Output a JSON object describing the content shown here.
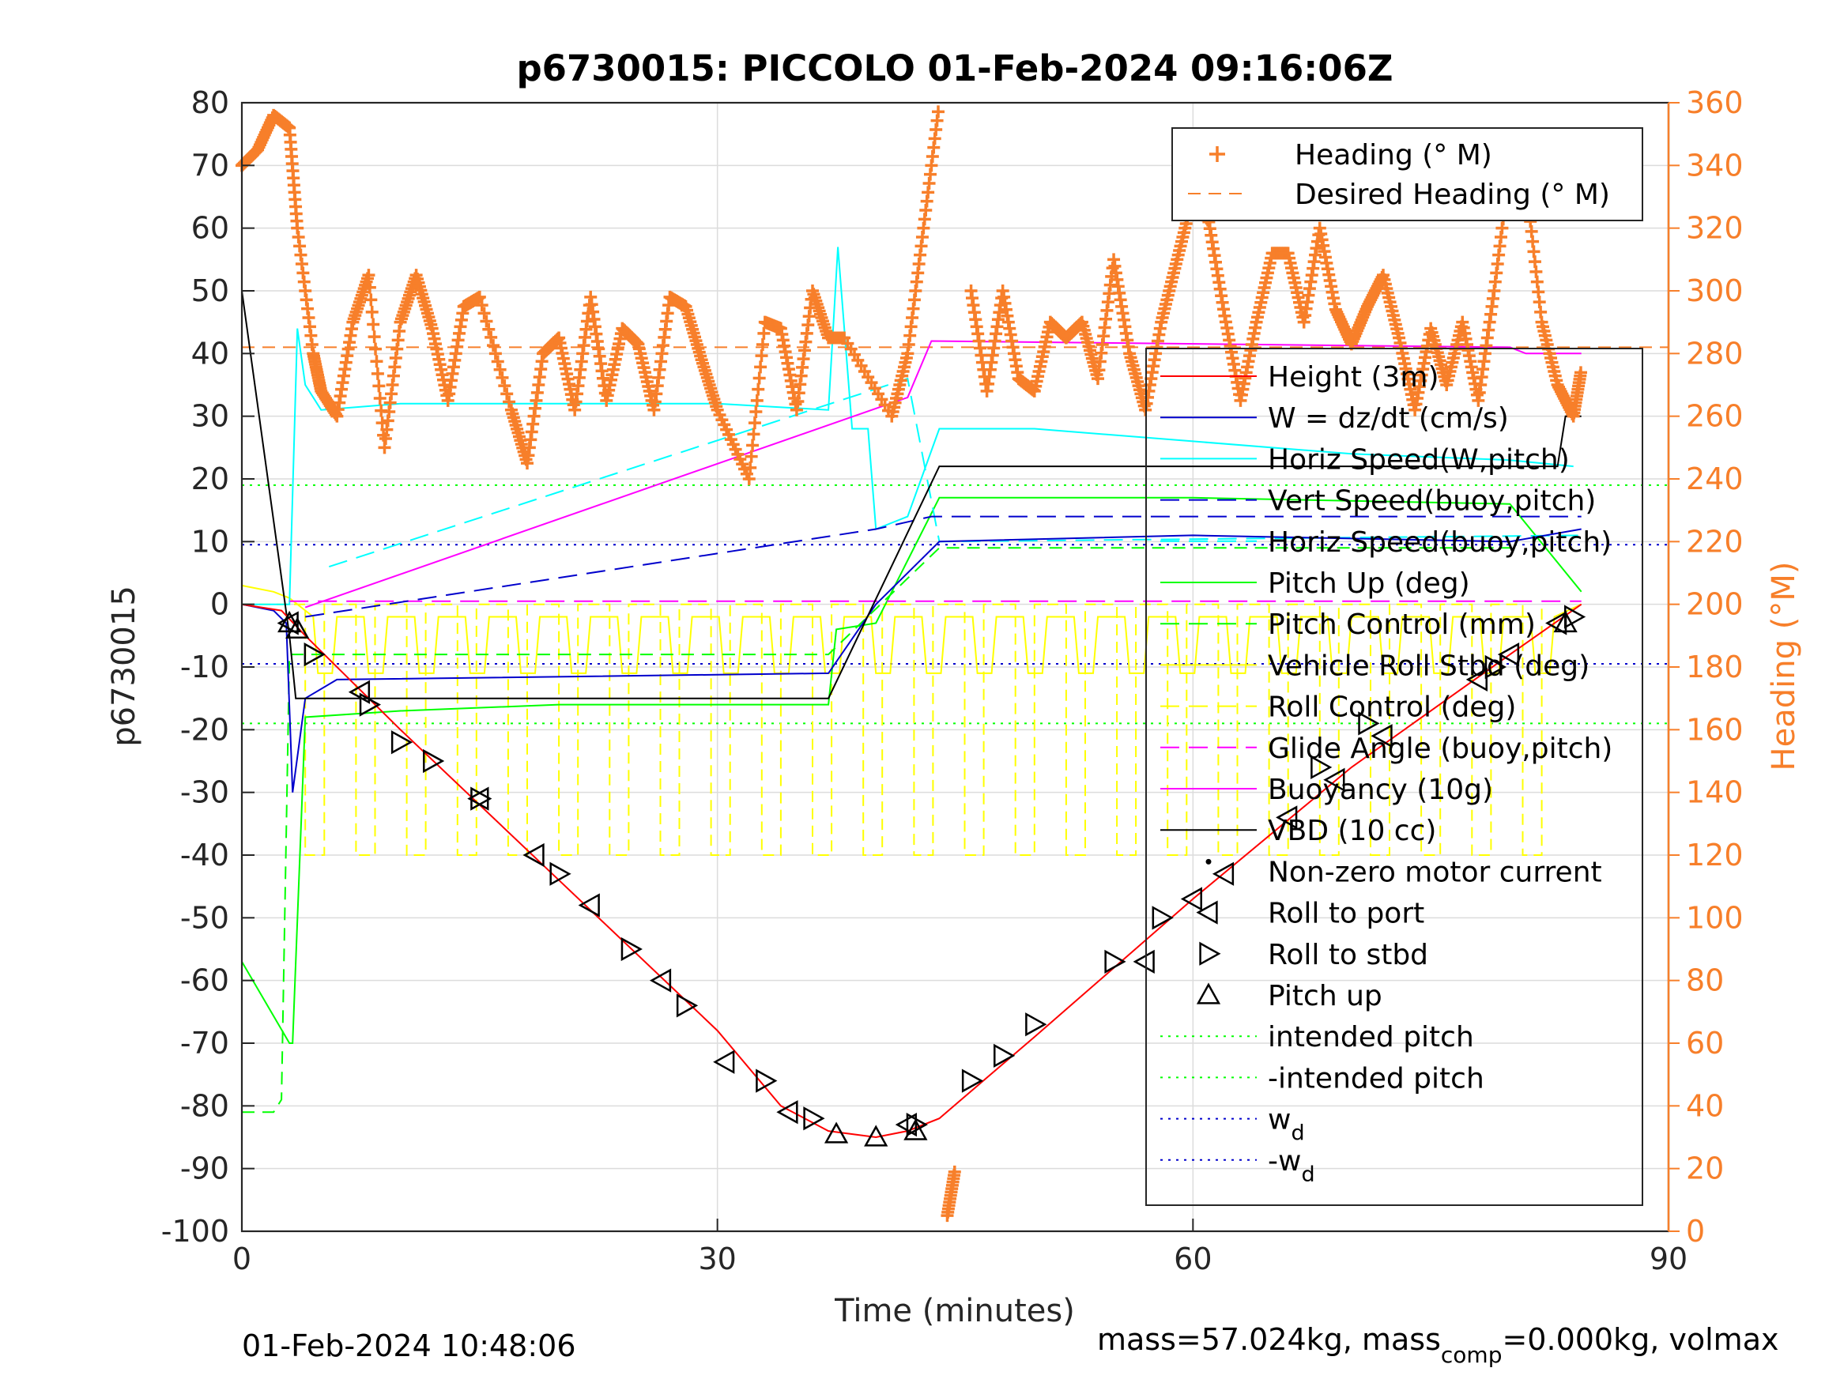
{
  "chart_data": {
    "type": "line",
    "title": "p6730015: PICCOLO 01-Feb-2024 09:16:06Z",
    "xlabel": "Time (minutes)",
    "ylabel": "p6730015",
    "y2label": "Heading (°M)",
    "xlim": [
      0,
      90
    ],
    "ylim": [
      -100,
      80
    ],
    "y2lim": [
      0,
      360
    ],
    "xticks": [
      "0",
      "30",
      "60",
      "90"
    ],
    "yticks": [
      "80",
      "70",
      "60",
      "50",
      "40",
      "30",
      "20",
      "10",
      "0",
      "-10",
      "-20",
      "-30",
      "-40",
      "-50",
      "-60",
      "-70",
      "-80",
      "-90",
      "-100"
    ],
    "y2ticks": [
      "360",
      "340",
      "320",
      "300",
      "280",
      "260",
      "240",
      "220",
      "200",
      "180",
      "160",
      "140",
      "120",
      "100",
      "80",
      "60",
      "40",
      "20",
      "0"
    ],
    "grid": true,
    "footer_left": "01-Feb-2024 10:48:06",
    "footer_right_parts": [
      "mass=57.024kg, mass",
      "comp",
      "=0.000kg, volmax"
    ],
    "colors": {
      "heading": "#f77f2a",
      "height": "#ff0000",
      "w": "#0000cc",
      "horiz_speed": "#00ffff",
      "pitch": "#00ff00",
      "roll": "#ffff00",
      "glide": "#ff00ff",
      "buoyancy": "#ff00ff",
      "vbd": "#000000",
      "intended_pitch": "#00ff00",
      "wd": "#0000cc"
    },
    "legend_heading": {
      "placement": "top-right",
      "entries": [
        "Heading (° M)",
        "Desired Heading (° M)"
      ]
    },
    "legend_main": {
      "placement": "right",
      "entries": [
        {
          "label": "Height (3m)",
          "key": "height"
        },
        {
          "label": "W = dz/dt (cm/s)",
          "key": "w"
        },
        {
          "label": "Horiz Speed(W,pitch)",
          "key": "horiz_speed"
        },
        {
          "label": "Vert Speed(buoy,pitch)",
          "key": "vert_speed_buoy"
        },
        {
          "label": "Horiz Speed(buoy,pitch)",
          "key": "horiz_speed_buoy"
        },
        {
          "label": "Pitch Up (deg)",
          "key": "pitch"
        },
        {
          "label": "Pitch Control (mm)",
          "key": "pitch_control"
        },
        {
          "label": "Vehicle Roll Stbd (deg)",
          "key": "roll"
        },
        {
          "label": "Roll Control (deg)",
          "key": "roll_control"
        },
        {
          "label": "Glide Angle (buoy,pitch)",
          "key": "glide"
        },
        {
          "label": "Buoyancy (10g)",
          "key": "buoyancy"
        },
        {
          "label": "VBD (10 cc)",
          "key": "vbd"
        },
        {
          "label": "Non-zero motor current",
          "key": "motor"
        },
        {
          "label": "Roll to port",
          "key": "roll_port"
        },
        {
          "label": "Roll to stbd",
          "key": "roll_stbd"
        },
        {
          "label": "Pitch up",
          "key": "pitch_up"
        },
        {
          "label": "intended pitch",
          "key": "intended_pitch"
        },
        {
          "label": "-intended pitch",
          "key": "neg_intended_pitch"
        },
        {
          "label": "w",
          "sub": "d",
          "key": "wd"
        },
        {
          "label": "-w",
          "sub": "d",
          "key": "neg_wd"
        }
      ]
    },
    "series": {
      "height": {
        "x": [
          0,
          2.5,
          4,
          10,
          20,
          30,
          34,
          37,
          40,
          42,
          44,
          50,
          60,
          70,
          80,
          84.5
        ],
        "y": [
          0,
          -1,
          -5,
          -20,
          -44,
          -68,
          -80,
          -84,
          -85,
          -84,
          -82,
          -69,
          -47,
          -26,
          -8,
          0
        ]
      },
      "vbd": {
        "x": [
          0,
          3,
          3.4,
          37,
          44,
          65,
          83,
          83.5,
          84.5
        ],
        "y": [
          50,
          -5,
          -15,
          -15,
          22,
          22,
          22,
          30,
          30
        ]
      },
      "buoyancy": {
        "x": [
          4,
          42,
          43.5,
          80,
          81,
          84.5
        ],
        "y": [
          -0.5,
          33,
          42,
          41,
          40,
          40
        ]
      },
      "vert_speed_buoy": {
        "x": [
          4,
          40,
          43.5,
          84.5
        ],
        "y": [
          -2,
          12,
          14,
          14
        ]
      },
      "horiz_speed_buoy": {
        "x": [
          5.5,
          42,
          44,
          84.5
        ],
        "y": [
          6,
          36,
          10,
          11
        ]
      },
      "glide": {
        "x": [
          3,
          84.5
        ],
        "y": [
          0.5,
          0.5
        ]
      },
      "w_segments": [
        {
          "x": [
            0,
            2,
            2.8,
            3.2,
            4,
            6,
            37,
            40,
            44,
            60,
            80,
            84.5
          ],
          "y": [
            0,
            -1,
            -3,
            -30,
            -15,
            -12,
            -11,
            0,
            10,
            11,
            10,
            12
          ]
        }
      ],
      "horiz_speed": {
        "x": [
          0,
          3,
          3.5,
          4,
          5,
          10,
          20,
          30,
          37,
          37.6,
          38.5,
          39.5,
          40,
          42,
          44,
          50,
          60,
          70,
          80,
          84
        ],
        "y": [
          0,
          0,
          44,
          35,
          31,
          32,
          32,
          32,
          31,
          57,
          28,
          28,
          12,
          14,
          28,
          28,
          26,
          24,
          23,
          22
        ]
      },
      "pitch": {
        "x": [
          0,
          3,
          3.2,
          4,
          10,
          20,
          30,
          37,
          37.5,
          40,
          44,
          60,
          80,
          84.5
        ],
        "y": [
          -57,
          -70,
          -70,
          -18,
          -17,
          -16,
          -16,
          -16,
          -4,
          -3,
          17,
          17,
          16,
          2
        ]
      },
      "pitch_control": {
        "x": [
          0,
          2,
          2.5,
          3,
          37,
          44,
          80
        ],
        "y": [
          -81,
          -81,
          -79,
          -8,
          -8,
          9,
          9
        ]
      },
      "intended_pitch_value": 19,
      "wd_value": 9.5,
      "heading_deg": {
        "x": [
          0,
          1,
          2,
          3,
          3.5,
          4.5,
          5,
          6,
          7,
          8,
          9,
          10,
          11,
          12,
          13,
          14,
          15,
          17,
          18,
          19,
          20,
          21,
          22,
          23,
          24,
          25,
          26,
          27,
          28,
          29,
          30,
          32,
          33,
          34,
          35,
          36,
          37,
          38,
          41,
          42,
          43,
          44,
          44.5,
          45,
          46,
          47,
          48,
          49,
          50,
          51,
          52,
          53,
          54,
          55,
          56,
          57,
          58,
          59,
          60,
          61,
          62,
          63,
          64,
          65,
          66,
          67,
          68,
          69,
          70,
          71,
          72,
          73,
          74,
          75,
          76,
          77,
          78,
          79,
          80,
          81,
          82,
          83,
          84,
          84.5
        ],
        "y": [
          340,
          345,
          356,
          352,
          320,
          280,
          268,
          260,
          290,
          305,
          250,
          290,
          305,
          288,
          265,
          295,
          298,
          262,
          245,
          280,
          285,
          262,
          298,
          265,
          288,
          283,
          262,
          298,
          295,
          278,
          262,
          240,
          290,
          288,
          262,
          300,
          285,
          285,
          260,
          280,
          320,
          360,
          5,
          20,
          300,
          268,
          300,
          272,
          268,
          290,
          285,
          290,
          272,
          310,
          280,
          262,
          290,
          310,
          330,
          322,
          292,
          265,
          290,
          312,
          312,
          290,
          320,
          294,
          283,
          295,
          305,
          285,
          262,
          288,
          270,
          290,
          265,
          300,
          340,
          335,
          290,
          270,
          260,
          275
        ]
      },
      "desired_heading": 282
    },
    "markers": {
      "pitch_up": [
        [
          3,
          -3
        ],
        [
          3.5,
          -4
        ],
        [
          37.5,
          -84.5
        ],
        [
          40,
          -85
        ],
        [
          42.5,
          -84
        ],
        [
          83.5,
          -3
        ]
      ],
      "roll_port": [
        [
          3,
          -3
        ],
        [
          7.5,
          -14
        ],
        [
          15,
          -31
        ],
        [
          18.5,
          -40
        ],
        [
          22,
          -48
        ],
        [
          26.5,
          -60
        ],
        [
          30.5,
          -73
        ],
        [
          34.5,
          -81
        ],
        [
          42,
          -83
        ],
        [
          57,
          -57
        ],
        [
          60,
          -47
        ],
        [
          62,
          -43
        ],
        [
          66,
          -34
        ],
        [
          69,
          -28
        ],
        [
          72,
          -21
        ],
        [
          78,
          -12
        ],
        [
          80,
          -8
        ],
        [
          83,
          -3
        ]
      ],
      "roll_stbd": [
        [
          4.5,
          -8
        ],
        [
          8,
          -16
        ],
        [
          10,
          -22
        ],
        [
          12,
          -25
        ],
        [
          15,
          -31
        ],
        [
          20,
          -43
        ],
        [
          24.5,
          -55
        ],
        [
          28,
          -64
        ],
        [
          33,
          -76
        ],
        [
          36,
          -82
        ],
        [
          42.5,
          -83
        ],
        [
          46,
          -76
        ],
        [
          48,
          -72
        ],
        [
          50,
          -67
        ],
        [
          55,
          -57
        ],
        [
          58,
          -50
        ],
        [
          68,
          -26
        ],
        [
          71,
          -19
        ],
        [
          79,
          -10
        ],
        [
          84,
          -2
        ]
      ]
    }
  }
}
